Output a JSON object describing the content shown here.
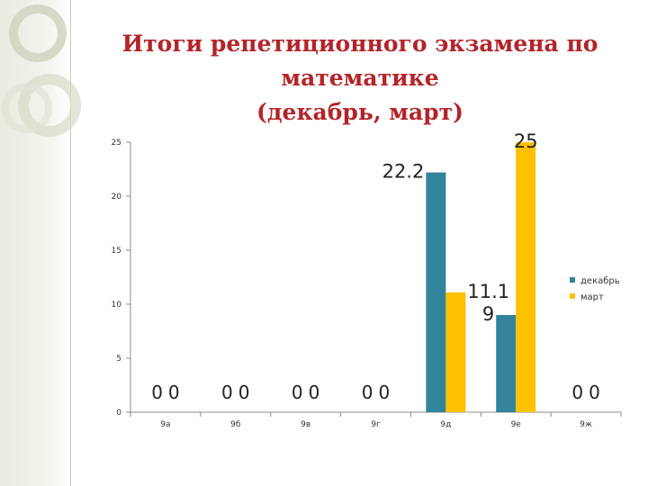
{
  "slide": {
    "title_lines": [
      "Итоги репетиционного экзамена по",
      "математике",
      "(декабрь,  март)"
    ]
  },
  "chart_data": {
    "type": "bar",
    "title": "Итоги репетиционного экзамена по математике (декабрь, март)",
    "categories": [
      "9а",
      "9б",
      "9в",
      "9г",
      "9д",
      "9е",
      "9ж"
    ],
    "series": [
      {
        "name": "декабрь",
        "color": "#31849b",
        "values": [
          0,
          0,
          0,
          0,
          22.2,
          9,
          0
        ]
      },
      {
        "name": "март",
        "color": "#ffc000",
        "values": [
          0,
          0,
          0,
          0,
          11.1,
          25,
          0
        ]
      }
    ],
    "ylim": [
      0,
      25
    ],
    "yticks": [
      0,
      5,
      10,
      15,
      20,
      25
    ],
    "grid": false,
    "legend": "right"
  }
}
